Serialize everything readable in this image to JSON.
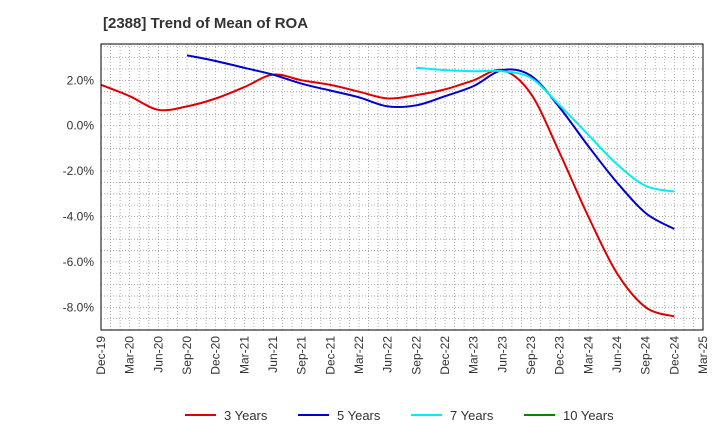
{
  "chart_data": {
    "type": "line",
    "title": "[2388]  Trend of Mean of ROA",
    "xlabel": "",
    "ylabel": "",
    "x": [
      "Dec-19",
      "Mar-20",
      "Jun-20",
      "Sep-20",
      "Dec-20",
      "Mar-21",
      "Jun-21",
      "Sep-21",
      "Dec-21",
      "Mar-22",
      "Jun-22",
      "Sep-22",
      "Dec-22",
      "Mar-23",
      "Jun-23",
      "Sep-23",
      "Dec-23",
      "Mar-24",
      "Jun-24",
      "Sep-24",
      "Dec-24",
      "Mar-25"
    ],
    "y_ticks": [
      2.0,
      0.0,
      -2.0,
      -4.0,
      -6.0,
      -8.0
    ],
    "y_tick_labels": [
      "2.0%",
      "0.0%",
      "-2.0%",
      "-4.0%",
      "-6.0%",
      "-8.0%"
    ],
    "ylim": [
      -9.0,
      3.6
    ],
    "grid": true,
    "legend_position": "bottom",
    "series": [
      {
        "name": "3 Years",
        "color": "#dd0000",
        "values": [
          1.8,
          1.3,
          0.7,
          0.85,
          1.2,
          1.7,
          2.25,
          2.0,
          1.8,
          1.5,
          1.2,
          1.35,
          1.6,
          2.0,
          2.45,
          1.4,
          -1.2,
          -4.0,
          -6.5,
          -8.0,
          -8.4,
          null
        ]
      },
      {
        "name": "5 Years",
        "color": "#0000cc",
        "values": [
          null,
          null,
          null,
          3.1,
          2.85,
          2.55,
          2.25,
          1.85,
          1.55,
          1.25,
          0.85,
          0.9,
          1.3,
          1.75,
          2.45,
          2.2,
          0.8,
          -0.9,
          -2.5,
          -3.85,
          -4.55,
          null
        ]
      },
      {
        "name": "7 Years",
        "color": "#00eeee",
        "values": [
          null,
          null,
          null,
          null,
          null,
          null,
          null,
          null,
          null,
          null,
          null,
          2.55,
          2.45,
          2.4,
          2.4,
          2.1,
          0.9,
          -0.4,
          -1.7,
          -2.65,
          -2.9,
          null
        ]
      },
      {
        "name": "10 Years",
        "color": "#008800",
        "values": [
          null,
          null,
          null,
          null,
          null,
          null,
          null,
          null,
          null,
          null,
          null,
          null,
          null,
          null,
          null,
          null,
          null,
          null,
          null,
          null,
          null,
          null
        ]
      }
    ]
  }
}
